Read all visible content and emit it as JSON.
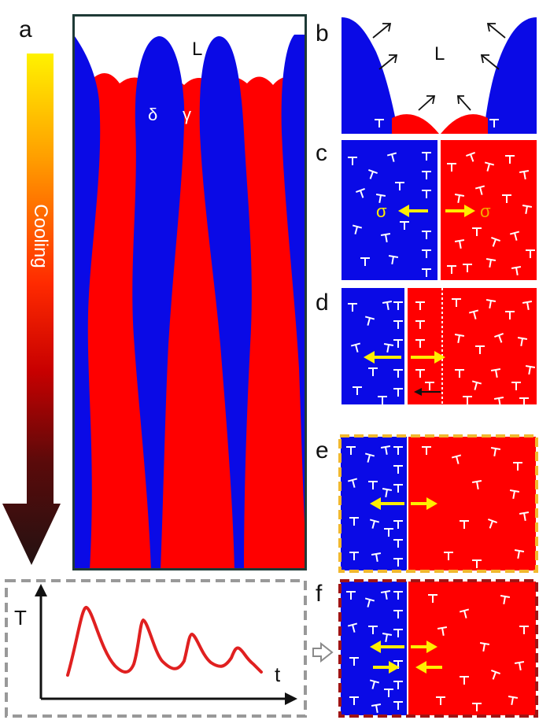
{
  "panels": {
    "a": "a",
    "b": "b",
    "c": "c",
    "d": "d",
    "e": "e",
    "f": "f"
  },
  "arrow_label": "Cooling",
  "main_panel": {
    "liquid": "L",
    "delta": "δ",
    "gamma": "γ"
  },
  "panel_b": {
    "liquid": "L"
  },
  "panel_c": {
    "left_sigma": "σ",
    "right_sigma": "σ"
  },
  "inset_plot": {
    "y_label": "T",
    "x_label": "t"
  },
  "colors": {
    "delta_phase": "#0a0ae6",
    "gamma_phase": "#ff0000",
    "frame_e": "#f2b82e",
    "frame_f": "#a01414",
    "inset_border": "#999999",
    "yellow_arrow": "#ffee00",
    "curve": "#e02020"
  },
  "icons": {
    "dislocation": "inverted-T-symbol",
    "cooling_arrow": "gradient-down-arrow",
    "pointer": "hollow-right-arrow"
  }
}
